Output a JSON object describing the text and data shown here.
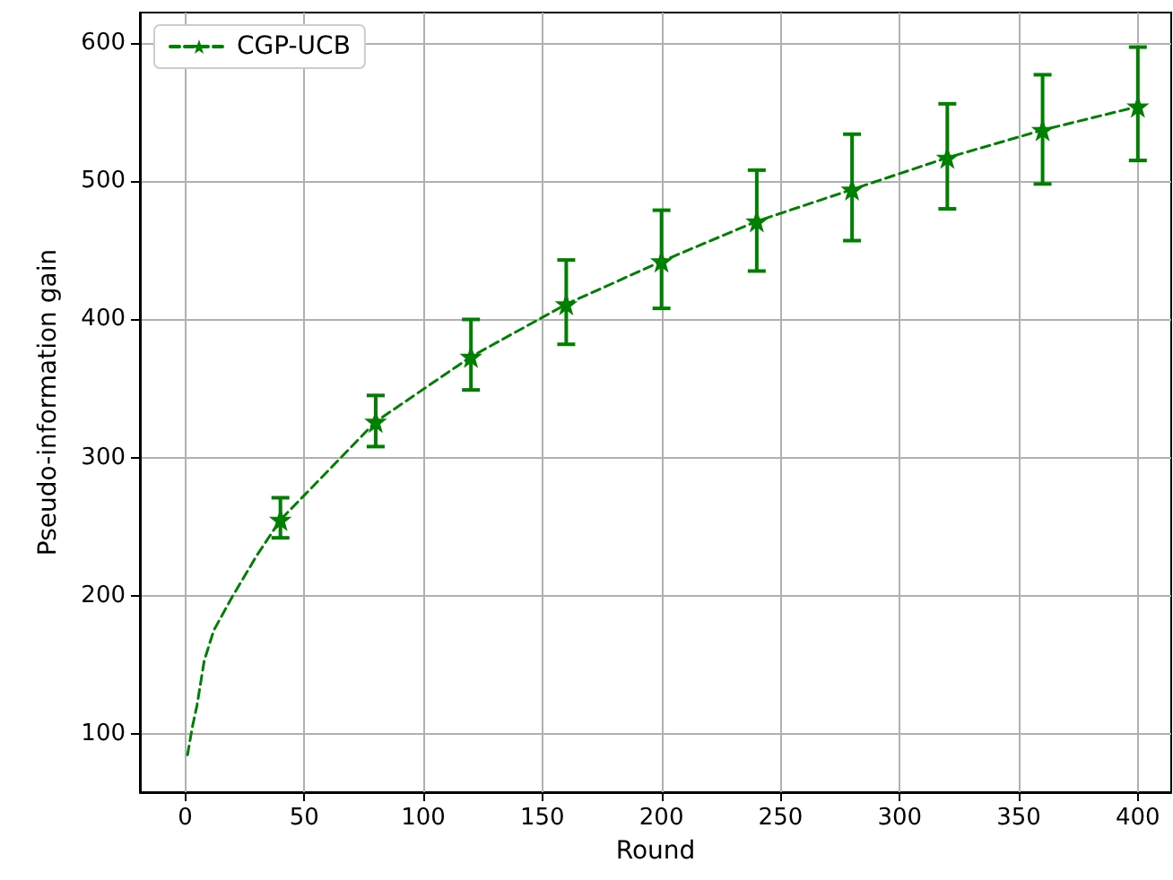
{
  "chart_data": {
    "type": "line",
    "xlabel": "Round",
    "ylabel": "Pseudo-information gain",
    "xlim": [
      -19,
      414
    ],
    "xticks": [
      0,
      50,
      100,
      150,
      200,
      250,
      300,
      350,
      400
    ],
    "ylim": [
      58,
      622
    ],
    "yticks": [
      100,
      200,
      300,
      400,
      500,
      600
    ],
    "grid": true,
    "legend": "top left",
    "marker": "star",
    "line_style": "dashed",
    "series": [
      {
        "name": "CGP-UCB",
        "color": "#008000",
        "x": [
          1,
          3,
          5,
          8,
          12,
          20,
          30,
          40,
          80,
          120,
          160,
          200,
          240,
          280,
          320,
          360,
          400
        ],
        "values": [
          85,
          105,
          121,
          153,
          175,
          200,
          229,
          255,
          326,
          373,
          411,
          442,
          471,
          494,
          517,
          537,
          554
        ],
        "errors": [
          null,
          null,
          null,
          null,
          null,
          null,
          null,
          [
            242,
            271
          ],
          [
            308,
            345
          ],
          [
            349,
            400
          ],
          [
            382,
            443
          ],
          [
            408,
            479
          ],
          [
            435,
            508
          ],
          [
            457,
            534
          ],
          [
            480,
            556
          ],
          [
            498,
            577
          ],
          [
            515,
            597
          ]
        ]
      }
    ]
  }
}
